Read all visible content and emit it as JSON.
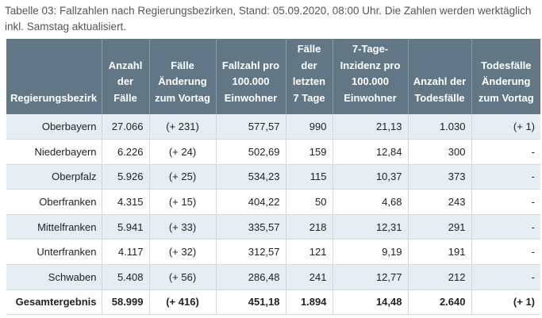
{
  "caption": "Tabelle 03: Fallzahlen nach Regierungsbezirken, Stand: 05.09.2020, 08:00 Uhr. Die Zahlen werden werktäglich inkl. Samstag aktualisiert.",
  "table": {
    "headers": [
      "Regierungsbezirk",
      "Anzahl der Fälle",
      "Fälle Änderung zum Vortag",
      "Fallzahl pro 100.000 Einwohner",
      "Fälle der letzten 7 Tage",
      "7-Tage-Inzidenz pro 100.000 Einwohner",
      "Anzahl der Todesfälle",
      "Todesfälle Änderung zum Vortag"
    ],
    "rows": [
      [
        "Oberbayern",
        "27.066",
        "(+ 231)",
        "577,57",
        "990",
        "21,13",
        "1.030",
        "(+ 1)"
      ],
      [
        "Niederbayern",
        "6.226",
        "(+ 24)",
        "502,69",
        "159",
        "12,84",
        "300",
        "-"
      ],
      [
        "Oberpfalz",
        "5.926",
        "(+ 25)",
        "534,23",
        "115",
        "10,37",
        "373",
        "-"
      ],
      [
        "Oberfranken",
        "4.315",
        "(+ 15)",
        "404,22",
        "50",
        "4,68",
        "243",
        "-"
      ],
      [
        "Mittelfranken",
        "5.941",
        "(+ 33)",
        "335,57",
        "218",
        "12,31",
        "291",
        "-"
      ],
      [
        "Unterfranken",
        "4.117",
        "(+ 32)",
        "312,57",
        "121",
        "9,19",
        "191",
        "-"
      ],
      [
        "Schwaben",
        "5.408",
        "(+ 56)",
        "286,48",
        "241",
        "12,77",
        "212",
        "-"
      ]
    ],
    "total": [
      "Gesamtergebnis",
      "58.999",
      "(+ 416)",
      "451,18",
      "1.894",
      "14,48",
      "2.640",
      "(+ 1)"
    ]
  }
}
